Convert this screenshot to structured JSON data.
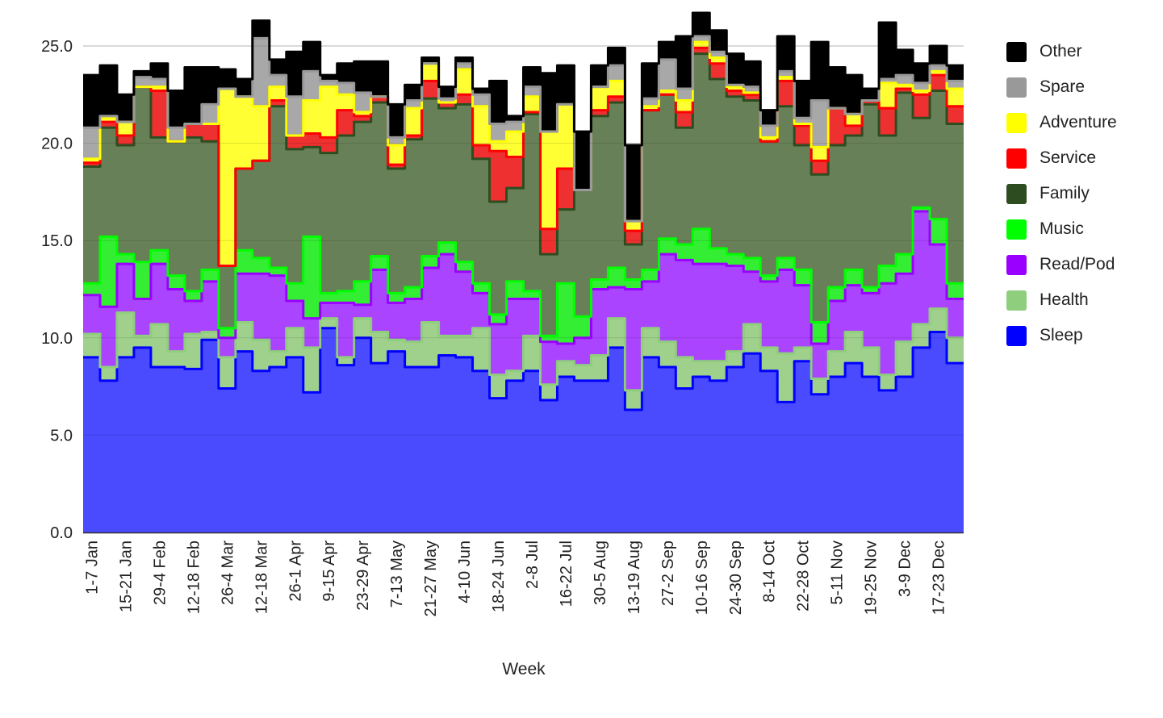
{
  "chart_data": {
    "type": "area",
    "stacked": true,
    "step": true,
    "xlabel": "Week",
    "ylabel": "",
    "ylim": [
      0,
      25
    ],
    "y_ticks": [
      "0.0",
      "5.0",
      "10.0",
      "15.0",
      "20.0",
      "25.0"
    ],
    "grid": true,
    "legend_position": "right",
    "x_tick_labels": [
      "1-7 Jan",
      "15-21 Jan",
      "29-4 Feb",
      "12-18 Feb",
      "26-4 Mar",
      "12-18 Mar",
      "26-1 Apr",
      "9-15 Apr",
      "23-29 Apr",
      "7-13 May",
      "21-27 May",
      "4-10 Jun",
      "18-24 Jun",
      "2-8 Jul",
      "16-22 Jul",
      "30-5 Aug",
      "13-19 Aug",
      "27-2 Sep",
      "10-16 Sep",
      "24-30 Sep",
      "8-14 Oct",
      "22-28 Oct",
      "5-11 Nov",
      "19-25 Nov",
      "3-9 Dec",
      "17-23 Dec"
    ],
    "x_tick_every": 2,
    "series": [
      {
        "name": "Sleep",
        "color": "#0000ff",
        "fill": "#4a4aff",
        "values": [
          9.0,
          7.8,
          9.0,
          9.5,
          8.5,
          8.5,
          8.4,
          9.9,
          7.4,
          9.3,
          8.3,
          8.5,
          9.0,
          7.2,
          10.5,
          8.6,
          10.0,
          8.7,
          9.3,
          8.5,
          8.5,
          9.1,
          9.0,
          8.3,
          6.9,
          7.8,
          8.3,
          6.8,
          8.0,
          7.8,
          7.8,
          9.5,
          6.3,
          9.0,
          8.5,
          7.4,
          8.0,
          7.8,
          8.5,
          9.2,
          8.3,
          6.7,
          8.8,
          7.1,
          8.0,
          8.7,
          8.0,
          7.3,
          8.0,
          9.5,
          10.3,
          8.7
        ]
      },
      {
        "name": "Health",
        "color": "#8fce7c",
        "fill": "#9fd18c",
        "values": [
          1.2,
          0.7,
          2.3,
          0.6,
          2.2,
          0.8,
          1.8,
          0.4,
          1.6,
          1.5,
          1.6,
          0.8,
          1.5,
          2.3,
          0.5,
          0.4,
          1.0,
          1.6,
          0.6,
          1.3,
          2.3,
          1.0,
          1.1,
          2.2,
          1.2,
          0.5,
          1.8,
          0.8,
          0.8,
          0.8,
          1.3,
          1.5,
          1.0,
          1.5,
          1.3,
          1.6,
          0.8,
          1.0,
          0.8,
          1.5,
          1.2,
          2.5,
          0.7,
          0.8,
          1.3,
          1.6,
          1.5,
          0.8,
          1.8,
          1.2,
          1.2,
          1.3
        ]
      },
      {
        "name": "Read/Pod",
        "color": "#9900ff",
        "fill": "#aa44ff",
        "values": [
          2.0,
          3.1,
          2.5,
          1.9,
          3.1,
          3.2,
          1.7,
          2.6,
          1.0,
          2.5,
          3.4,
          3.9,
          1.4,
          1.5,
          0.8,
          2.8,
          0.7,
          3.2,
          1.9,
          2.2,
          2.8,
          4.2,
          3.3,
          1.8,
          2.6,
          3.7,
          1.9,
          2.2,
          0.9,
          1.4,
          3.4,
          1.6,
          5.2,
          2.4,
          4.5,
          5.0,
          5.0,
          5.0,
          4.4,
          2.7,
          3.4,
          4.3,
          3.2,
          1.8,
          2.6,
          2.4,
          2.8,
          4.7,
          3.5,
          5.8,
          3.3,
          2.0
        ]
      },
      {
        "name": "Music",
        "color": "#00ff00",
        "fill": "#33ee33",
        "values": [
          0.6,
          3.6,
          0.5,
          1.9,
          0.7,
          0.7,
          0.5,
          0.6,
          0.5,
          1.2,
          0.8,
          0.4,
          0.9,
          4.2,
          0.5,
          0.6,
          1.2,
          0.7,
          0.5,
          0.6,
          0.6,
          0.6,
          0.5,
          0.5,
          0.5,
          0.9,
          0.4,
          0.3,
          3.1,
          1.1,
          0.5,
          1.0,
          0.5,
          0.6,
          0.8,
          0.8,
          1.8,
          0.8,
          0.6,
          0.7,
          0.3,
          0.6,
          0.8,
          1.1,
          0.7,
          0.8,
          0.3,
          0.9,
          1.0,
          0.2,
          1.3,
          0.8
        ]
      },
      {
        "name": "Family",
        "color": "#2d4d20",
        "fill": "#688057",
        "values": [
          6.0,
          5.6,
          5.6,
          9.0,
          5.8,
          6.9,
          7.9,
          6.6,
          3.2,
          4.2,
          5.0,
          8.3,
          6.9,
          4.6,
          7.2,
          8.0,
          8.2,
          7.9,
          6.4,
          7.6,
          8.1,
          6.9,
          8.1,
          6.4,
          5.8,
          4.8,
          9.1,
          4.2,
          3.8,
          6.5,
          8.4,
          8.5,
          1.8,
          8.2,
          7.4,
          6.0,
          9.0,
          8.7,
          8.1,
          8.1,
          6.9,
          7.8,
          6.4,
          7.6,
          7.3,
          6.9,
          9.4,
          6.7,
          8.3,
          4.6,
          6.6,
          8.2
        ]
      },
      {
        "name": "Service",
        "color": "#ff0000",
        "fill": "#ee3030",
        "values": [
          0.2,
          0.3,
          0.5,
          0.0,
          2.4,
          0.0,
          0.7,
          0.9,
          0.0,
          0.0,
          0.0,
          0.3,
          0.7,
          0.7,
          0.8,
          1.3,
          0.3,
          0.3,
          0.2,
          0.2,
          0.9,
          0.3,
          0.5,
          0.7,
          2.6,
          1.6,
          0.1,
          1.3,
          2.1,
          0.0,
          0.3,
          0.3,
          0.7,
          0.0,
          0.0,
          0.8,
          0.3,
          0.8,
          0.3,
          0.3,
          0.0,
          1.3,
          1.0,
          0.7,
          1.9,
          0.5,
          0.2,
          1.4,
          0.2,
          1.2,
          0.8,
          0.9
        ]
      },
      {
        "name": "Adventure",
        "color": "#ffff00",
        "fill": "#ffff33",
        "values": [
          0.2,
          0.2,
          0.7,
          0.0,
          0.2,
          0.0,
          0.0,
          0.0,
          9.1,
          3.7,
          2.8,
          0.7,
          0.0,
          1.7,
          2.6,
          0.8,
          0.2,
          0.0,
          1.0,
          1.4,
          0.9,
          0.0,
          1.3,
          2.0,
          0.5,
          1.3,
          0.8,
          5.0,
          3.3,
          0.0,
          1.2,
          0.8,
          0.5,
          0.2,
          0.2,
          0.6,
          0.3,
          0.3,
          0.2,
          0.1,
          0.2,
          0.2,
          0.1,
          0.7,
          0.0,
          0.6,
          0.0,
          1.3,
          0.2,
          0.2,
          0.2,
          0.9
        ]
      },
      {
        "name": "Spare",
        "color": "#999999",
        "fill": "#a8a8a8",
        "values": [
          1.6,
          0.1,
          0.0,
          0.5,
          0.4,
          0.7,
          0.0,
          1.0,
          0.0,
          0.0,
          3.5,
          0.6,
          2.0,
          1.5,
          0.3,
          0.6,
          1.0,
          0.0,
          0.4,
          0.4,
          0.0,
          0.2,
          0.3,
          0.6,
          0.9,
          0.5,
          0.5,
          0.0,
          0.0,
          0.0,
          0.0,
          0.8,
          0.0,
          0.4,
          1.6,
          0.6,
          0.3,
          0.3,
          0.1,
          0.3,
          0.6,
          0.3,
          0.3,
          2.4,
          0.0,
          0.0,
          0.0,
          0.2,
          0.5,
          0.4,
          0.3,
          0.4
        ]
      },
      {
        "name": "Other",
        "color": "#000000",
        "fill": "#000000",
        "values": [
          2.7,
          2.6,
          1.4,
          0.3,
          0.8,
          1.9,
          2.9,
          1.9,
          1.0,
          0.9,
          0.9,
          0.8,
          2.3,
          1.5,
          0.3,
          1.0,
          1.6,
          1.8,
          1.7,
          0.8,
          0.3,
          0.6,
          0.3,
          0.3,
          2.2,
          0.3,
          1.0,
          3.0,
          2.0,
          3.0,
          1.1,
          0.9,
          3.9,
          1.8,
          0.9,
          2.7,
          1.2,
          1.1,
          1.6,
          1.3,
          0.8,
          1.8,
          1.9,
          3.0,
          2.1,
          2.0,
          0.6,
          2.9,
          1.3,
          1.0,
          1.0,
          0.8
        ]
      }
    ]
  }
}
